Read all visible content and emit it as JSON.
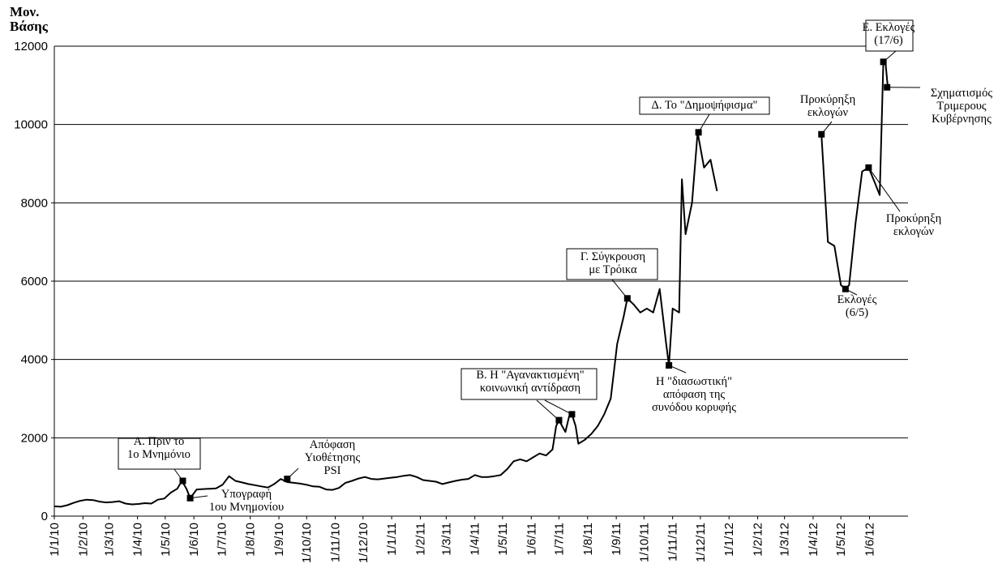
{
  "chart_data": {
    "type": "line",
    "ylabel": [
      "Μον.",
      "Βάσης"
    ],
    "xlabel": "",
    "ylim": [
      0,
      12000
    ],
    "y_ticks": [
      "0",
      "2000",
      "4000",
      "6000",
      "8000",
      "10000",
      "12000"
    ],
    "x_ticks": [
      "1/1/10",
      "1/2/10",
      "1/3/10",
      "1/4/10",
      "1/5/10",
      "1/6/10",
      "1/7/10",
      "1/8/10",
      "1/9/10",
      "1/10/10",
      "1/11/10",
      "1/12/10",
      "1/1/11",
      "1/2/11",
      "1/3/11",
      "1/4/11",
      "1/5/11",
      "1/6/11",
      "1/7/11",
      "1/8/11",
      "1/9/11",
      "1/10/11",
      "1/11/11",
      "1/12/11",
      "1/1/12",
      "1/2/12",
      "1/3/12",
      "1/4/12",
      "1/5/12",
      "1/6/12"
    ],
    "x_range": [
      "2010-01-01",
      "2012-07-15"
    ],
    "grid": "horizontal",
    "legend": "none",
    "series": [
      {
        "points": [
          [
            "2010-01-01",
            250
          ],
          [
            "2010-01-08",
            240
          ],
          [
            "2010-01-15",
            280
          ],
          [
            "2010-01-22",
            340
          ],
          [
            "2010-01-29",
            390
          ],
          [
            "2010-02-05",
            420
          ],
          [
            "2010-02-12",
            410
          ],
          [
            "2010-02-19",
            370
          ],
          [
            "2010-02-26",
            350
          ],
          [
            "2010-03-05",
            360
          ],
          [
            "2010-03-12",
            380
          ],
          [
            "2010-03-19",
            320
          ],
          [
            "2010-03-26",
            300
          ],
          [
            "2010-04-02",
            310
          ],
          [
            "2010-04-09",
            330
          ],
          [
            "2010-04-16",
            320
          ],
          [
            "2010-04-23",
            420
          ],
          [
            "2010-04-30",
            450
          ],
          [
            "2010-05-07",
            600
          ],
          [
            "2010-05-14",
            700
          ],
          [
            "2010-05-19",
            900
          ],
          [
            "2010-05-24",
            700
          ],
          [
            "2010-05-28",
            460
          ],
          [
            "2010-06-04",
            680
          ],
          [
            "2010-06-11",
            690
          ],
          [
            "2010-06-18",
            700
          ],
          [
            "2010-06-25",
            710
          ],
          [
            "2010-07-02",
            800
          ],
          [
            "2010-07-09",
            1020
          ],
          [
            "2010-07-16",
            900
          ],
          [
            "2010-07-23",
            860
          ],
          [
            "2010-07-30",
            820
          ],
          [
            "2010-08-06",
            790
          ],
          [
            "2010-08-13",
            760
          ],
          [
            "2010-08-20",
            730
          ],
          [
            "2010-08-27",
            820
          ],
          [
            "2010-09-03",
            950
          ],
          [
            "2010-09-10",
            870
          ],
          [
            "2010-09-17",
            850
          ],
          [
            "2010-09-24",
            830
          ],
          [
            "2010-10-01",
            800
          ],
          [
            "2010-10-08",
            760
          ],
          [
            "2010-10-15",
            750
          ],
          [
            "2010-10-22",
            680
          ],
          [
            "2010-10-29",
            670
          ],
          [
            "2010-11-05",
            720
          ],
          [
            "2010-11-12",
            850
          ],
          [
            "2010-11-19",
            900
          ],
          [
            "2010-11-26",
            960
          ],
          [
            "2010-12-03",
            1000
          ],
          [
            "2010-12-10",
            950
          ],
          [
            "2010-12-17",
            940
          ],
          [
            "2010-12-24",
            960
          ],
          [
            "2010-12-31",
            980
          ],
          [
            "2011-01-07",
            1000
          ],
          [
            "2011-01-14",
            1030
          ],
          [
            "2011-01-21",
            1050
          ],
          [
            "2011-01-28",
            1000
          ],
          [
            "2011-02-04",
            920
          ],
          [
            "2011-02-11",
            900
          ],
          [
            "2011-02-18",
            880
          ],
          [
            "2011-02-25",
            820
          ],
          [
            "2011-03-04",
            860
          ],
          [
            "2011-03-11",
            900
          ],
          [
            "2011-03-18",
            930
          ],
          [
            "2011-03-25",
            950
          ],
          [
            "2011-04-01",
            1050
          ],
          [
            "2011-04-08",
            1000
          ],
          [
            "2011-04-15",
            1000
          ],
          [
            "2011-04-22",
            1020
          ],
          [
            "2011-04-29",
            1050
          ],
          [
            "2011-05-06",
            1200
          ],
          [
            "2011-05-13",
            1400
          ],
          [
            "2011-05-20",
            1450
          ],
          [
            "2011-05-27",
            1400
          ],
          [
            "2011-06-03",
            1500
          ],
          [
            "2011-06-10",
            1600
          ],
          [
            "2011-06-17",
            1550
          ],
          [
            "2011-06-24",
            1700
          ],
          [
            "2011-06-28",
            2300
          ],
          [
            "2011-07-01",
            2450
          ],
          [
            "2011-07-08",
            2150
          ],
          [
            "2011-07-12",
            2550
          ],
          [
            "2011-07-15",
            2600
          ],
          [
            "2011-07-19",
            2300
          ],
          [
            "2011-07-22",
            1850
          ],
          [
            "2011-07-29",
            1950
          ],
          [
            "2011-08-05",
            2100
          ],
          [
            "2011-08-12",
            2300
          ],
          [
            "2011-08-19",
            2600
          ],
          [
            "2011-08-26",
            3000
          ],
          [
            "2011-09-02",
            4400
          ],
          [
            "2011-09-09",
            5100
          ],
          [
            "2011-09-13",
            5560
          ],
          [
            "2011-09-20",
            5400
          ],
          [
            "2011-09-27",
            5200
          ],
          [
            "2011-10-04",
            5300
          ],
          [
            "2011-10-11",
            5200
          ],
          [
            "2011-10-18",
            5800
          ],
          [
            "2011-10-25",
            4400
          ],
          [
            "2011-10-28",
            3850
          ],
          [
            "2011-11-01",
            5300
          ],
          [
            "2011-11-08",
            5200
          ],
          [
            "2011-11-11",
            8600
          ],
          [
            "2011-11-15",
            7200
          ],
          [
            "2011-11-22",
            8000
          ],
          [
            "2011-11-28",
            9800
          ],
          [
            "2011-12-05",
            8900
          ],
          [
            "2011-12-12",
            9100
          ],
          [
            "2011-12-19",
            8300
          ],
          null,
          [
            "2012-04-10",
            9750
          ],
          [
            "2012-04-17",
            7000
          ],
          [
            "2012-04-24",
            6900
          ],
          [
            "2012-05-01",
            5900
          ],
          [
            "2012-05-06",
            5800
          ],
          [
            "2012-05-10",
            5900
          ],
          [
            "2012-05-17",
            7500
          ],
          [
            "2012-05-24",
            8800
          ],
          [
            "2012-05-31",
            8900
          ],
          [
            "2012-06-07",
            8500
          ],
          [
            "2012-06-12",
            8200
          ],
          [
            "2012-06-16",
            11600
          ],
          [
            "2012-06-18",
            11650
          ],
          [
            "2012-06-21",
            10900
          ]
        ]
      }
    ],
    "markers": [
      [
        "2010-05-20",
        900
      ],
      [
        "2010-05-28",
        460
      ],
      [
        "2010-09-10",
        950
      ],
      [
        "2011-07-01",
        2450
      ],
      [
        "2011-07-15",
        2600
      ],
      [
        "2011-09-13",
        5560
      ],
      [
        "2011-10-28",
        3850
      ],
      [
        "2011-11-29",
        9800
      ],
      [
        "2012-04-10",
        9750
      ],
      [
        "2012-05-06",
        5800
      ],
      [
        "2012-05-31",
        8900
      ],
      [
        "2012-06-16",
        11600
      ],
      [
        "2012-06-20",
        10950
      ]
    ],
    "annotations": [
      {
        "lines": [
          "Α. Πριν το",
          "1ο Μνημόνιο"
        ],
        "boxed": true
      },
      {
        "lines": [
          "Υπογραφή",
          "1ου Μνημονίου"
        ],
        "boxed": false
      },
      {
        "lines": [
          "Απόφαση",
          "Υιοθέτησης",
          "PSI"
        ],
        "boxed": false
      },
      {
        "lines": [
          "Β. Η \"Αγανακτισμένη\"",
          "κοινωνική αντίδραση"
        ],
        "boxed": true
      },
      {
        "lines": [
          "Γ. Σύγκρουση",
          "με Τρόικα"
        ],
        "boxed": true
      },
      {
        "lines": [
          "Η \"διασωστική\"",
          "απόφαση της",
          "συνόδου κορυφής"
        ],
        "boxed": false
      },
      {
        "lines": [
          "Δ. Το \"Δημοψήφισμα\""
        ],
        "boxed": true
      },
      {
        "lines": [
          "Προκύρηξη",
          "εκλογών"
        ],
        "boxed": false
      },
      {
        "lines": [
          "Εκλογές",
          "(6/5)"
        ],
        "boxed": false
      },
      {
        "lines": [
          "Προκύρηξη",
          "εκλογών"
        ],
        "boxed": false
      },
      {
        "lines": [
          "Ε. Εκλογές",
          "(17/6)"
        ],
        "boxed": true
      },
      {
        "lines": [
          "Σχηματισμός",
          "Τριμερους",
          "Κυβέρνησης"
        ],
        "boxed": false
      }
    ]
  }
}
